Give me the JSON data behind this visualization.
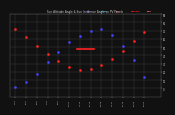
{
  "title": "Sun Altitude Angle & Sun Incidence Angle on PV Panels",
  "legend_entries": [
    {
      "label": "HDR",
      "color": "#4444ff"
    },
    {
      "label": "SLAT",
      "color": "#00ccff"
    },
    {
      "label": "SIN",
      "color": "#ff2222"
    },
    {
      "label": "APPINV",
      "color": "#ff2222"
    },
    {
      "label": "TRK",
      "color": "#ff6666"
    }
  ],
  "background_color": "#111111",
  "plot_bg_color": "#111111",
  "grid_color": "#555555",
  "text_color": "#cccccc",
  "ylim": [
    -10,
    90
  ],
  "xlim": [
    0,
    14
  ],
  "x_tick_count": 13,
  "x_labels": [
    "4:19",
    "5:26",
    "6:34",
    "7:43",
    "8:52",
    "10:01",
    "11:10",
    "12:19",
    "13:28",
    "14:37",
    "15:46",
    "16:55",
    "18:04"
  ],
  "y_ticks": [
    0,
    10,
    20,
    30,
    40,
    50,
    60,
    70,
    80,
    90
  ],
  "blue_x": [
    0.5,
    1.5,
    2.5,
    3.5,
    4.5,
    5.5,
    6.5,
    7.5,
    8.5,
    9.5,
    10.5,
    11.5,
    12.5
  ],
  "blue_y": [
    2,
    8,
    18,
    32,
    44,
    56,
    64,
    70,
    72,
    65,
    52,
    35,
    14
  ],
  "red_x": [
    0.5,
    1.5,
    2.5,
    3.5,
    4.5,
    5.5,
    6.5,
    7.5,
    8.5,
    9.5,
    10.5,
    11.5,
    12.5
  ],
  "red_y": [
    72,
    62,
    52,
    42,
    33,
    26,
    22,
    24,
    28,
    36,
    46,
    57,
    68
  ],
  "red_hline_x_start": 6.2,
  "red_hline_x_end": 7.8,
  "red_hline_y": 48
}
